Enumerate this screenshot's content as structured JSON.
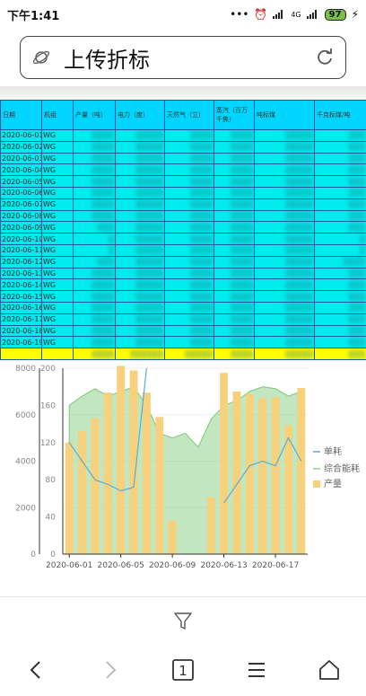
{
  "status": {
    "time": "下午1:41",
    "net": "4G",
    "battery": "97"
  },
  "url": {
    "title": "上传折标"
  },
  "table": {
    "headers": [
      "日期",
      "机组",
      "产量（吨）",
      "电力（度）",
      "天然气（立）",
      "蒸汽（百万千焦）",
      "吨标煤",
      "千克标煤/吨"
    ],
    "rows": [
      [
        "2020-06-01",
        "WG",
        "▒▒▒▒",
        "▒▒▒▒▒",
        "▒▒▒▒",
        "▒▒▒▒",
        "▒▒▒▒▒",
        "▒▒▒"
      ],
      [
        "2020-06-02",
        "WG",
        "▒▒▒▒",
        "▒▒▒▒▒",
        "▒▒▒▒",
        "▒▒▒▒",
        "▒▒▒▒▒",
        "▒▒▒"
      ],
      [
        "2020-06-03",
        "WG",
        "▒▒▒▒",
        "▒▒▒▒▒",
        "▒▒▒▒",
        "▒▒▒▒",
        "▒▒▒▒▒",
        "▒▒▒"
      ],
      [
        "2020-06-04",
        "WG",
        "▒▒▒▒",
        "▒▒▒▒▒",
        "▒▒▒▒",
        "▒▒▒▒",
        "▒▒▒▒▒",
        "▒▒▒"
      ],
      [
        "2020-06-05",
        "WG",
        "▒▒▒▒",
        "▒▒▒▒▒",
        "▒▒▒▒",
        "▒▒▒▒",
        "▒▒▒▒▒",
        "▒▒▒"
      ],
      [
        "2020-06-06",
        "WG",
        "▒▒▒▒",
        "▒▒▒▒▒",
        "▒▒▒▒",
        "▒▒▒▒",
        "▒▒▒▒▒",
        "▒▒▒"
      ],
      [
        "2020-06-07",
        "WG",
        "▒▒▒▒",
        "▒▒▒▒▒",
        "▒▒▒▒",
        "▒▒▒▒",
        "▒▒▒▒▒",
        "▒▒▒"
      ],
      [
        "2020-06-08",
        "WG",
        "▒▒▒▒",
        "▒▒▒▒▒",
        "▒▒▒▒",
        "▒▒▒▒",
        "▒▒▒▒▒",
        "▒▒▒"
      ],
      [
        "2020-06-09",
        "WG",
        "▒▒▒",
        "▒▒▒▒▒",
        "▒▒▒▒",
        "▒▒▒▒",
        "▒▒▒▒▒",
        "▒▒▒"
      ],
      [
        "2020-06-10",
        "WG",
        "▒",
        "▒▒▒▒▒",
        "▒▒▒▒",
        "▒▒▒▒",
        "▒▒▒▒▒",
        "▒"
      ],
      [
        "2020-06-11",
        "WG",
        "▒",
        "▒▒▒▒▒",
        "▒▒▒▒",
        "▒▒▒▒",
        "▒▒▒▒▒",
        "▒"
      ],
      [
        "2020-06-12",
        "WG",
        "▒▒▒",
        "▒▒▒▒▒",
        "▒▒▒▒",
        "▒▒▒▒",
        "▒▒▒▒▒",
        "▒▒▒▒"
      ],
      [
        "2020-06-13",
        "WG",
        "▒▒▒▒",
        "▒▒▒▒▒",
        "▒▒▒▒",
        "▒▒▒▒",
        "▒▒▒▒▒",
        "▒▒▒"
      ],
      [
        "2020-06-14",
        "WG",
        "▒▒▒▒",
        "▒▒▒▒▒",
        "▒▒▒▒",
        "▒▒▒▒",
        "▒▒▒▒▒",
        "▒▒▒"
      ],
      [
        "2020-06-15",
        "WG",
        "▒▒▒▒",
        "▒▒▒▒▒",
        "▒▒▒▒",
        "▒▒▒▒",
        "▒▒▒▒▒",
        "▒▒▒"
      ],
      [
        "2020-06-16",
        "WG",
        "▒▒▒▒",
        "▒▒▒▒▒",
        "▒▒▒▒",
        "▒▒▒▒",
        "▒▒▒▒▒",
        "▒▒▒"
      ],
      [
        "2020-06-17",
        "WG",
        "▒▒▒▒",
        "▒▒▒▒▒",
        "▒▒▒▒",
        "▒▒▒▒",
        "▒▒▒▒▒",
        "▒▒▒"
      ],
      [
        "2020-06-18",
        "WG",
        "▒▒▒▒",
        "▒▒▒▒▒",
        "▒▒▒▒",
        "▒▒▒▒",
        "▒▒▒▒▒",
        "▒▒▒"
      ],
      [
        "2020-06-19",
        "WG",
        "▒▒▒▒",
        "▒▒▒▒▒",
        "▒▒▒▒",
        "▒▒▒▒",
        "▒▒▒▒▒",
        "▒▒▒"
      ]
    ],
    "total": [
      "",
      "",
      "▒▒▒▒",
      "▒▒▒▒▒▒",
      "▒▒▒▒▒",
      "▒▒▒▒",
      "▒▒▒▒▒",
      "▒▒▒"
    ]
  },
  "chart_data": {
    "type": "bar",
    "categories": [
      "2020-06-01",
      "2020-06-02",
      "2020-06-03",
      "2020-06-04",
      "2020-06-05",
      "2020-06-06",
      "2020-06-07",
      "2020-06-08",
      "2020-06-09",
      "2020-06-10",
      "2020-06-11",
      "2020-06-12",
      "2020-06-13",
      "2020-06-14",
      "2020-06-15",
      "2020-06-16",
      "2020-06-17",
      "2020-06-18",
      "2020-06-19"
    ],
    "xtick_labels": [
      "2020-06-01",
      "2020-06-05",
      "2020-06-09",
      "2020-06-13",
      "2020-06-17"
    ],
    "yaxis_left": {
      "ticks": [
        "0",
        "2000",
        "4000",
        "6000",
        "8000"
      ],
      "ylim": [
        0,
        8000
      ]
    },
    "yaxis_mid": {
      "ticks": [
        "0",
        "40",
        "80",
        "120",
        "160",
        "200"
      ],
      "ylim": [
        0,
        200
      ]
    },
    "series": [
      {
        "name": "产量",
        "type": "bar",
        "axis": "left",
        "color": "#f7d17b",
        "values": [
          4800,
          5300,
          5850,
          6950,
          8100,
          7900,
          6950,
          5900,
          1450,
          0,
          0,
          2450,
          7800,
          7000,
          6900,
          6700,
          6750,
          5550,
          7150
        ]
      },
      {
        "name": "单耗",
        "type": "line",
        "axis": "mid",
        "color": "#5aaed8",
        "values": [
          120,
          100,
          80,
          75,
          68,
          72,
          200,
          null,
          null,
          null,
          200,
          null,
          55,
          75,
          95,
          100,
          95,
          125,
          100
        ]
      },
      {
        "name": "综合能耗",
        "type": "area",
        "axis": "mid",
        "color": "#8fd18c",
        "values": [
          160,
          170,
          178,
          170,
          175,
          180,
          160,
          130,
          125,
          130,
          115,
          145,
          160,
          165,
          175,
          180,
          178,
          170,
          175
        ]
      }
    ],
    "legend": "right"
  }
}
